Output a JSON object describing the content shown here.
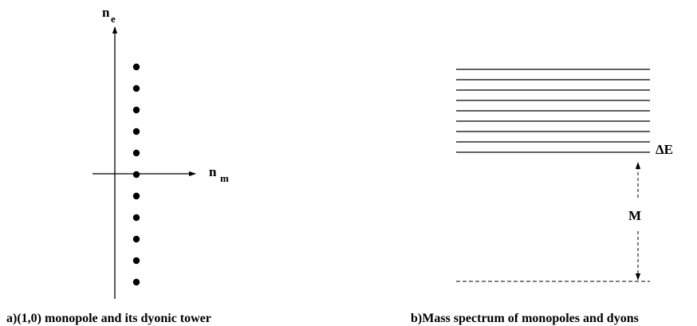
{
  "panel_a": {
    "y_axis_label": "n",
    "y_axis_subscript": "e",
    "x_axis_label": "n",
    "x_axis_subscript": "m",
    "dot_count": 11,
    "caption": "a)(1,0) monopole and its dyonic tower"
  },
  "panel_b": {
    "level_count": 9,
    "gap_label": "ΔE",
    "mass_label": "M",
    "caption": "b)Mass spectrum of monopoles and dyons"
  }
}
